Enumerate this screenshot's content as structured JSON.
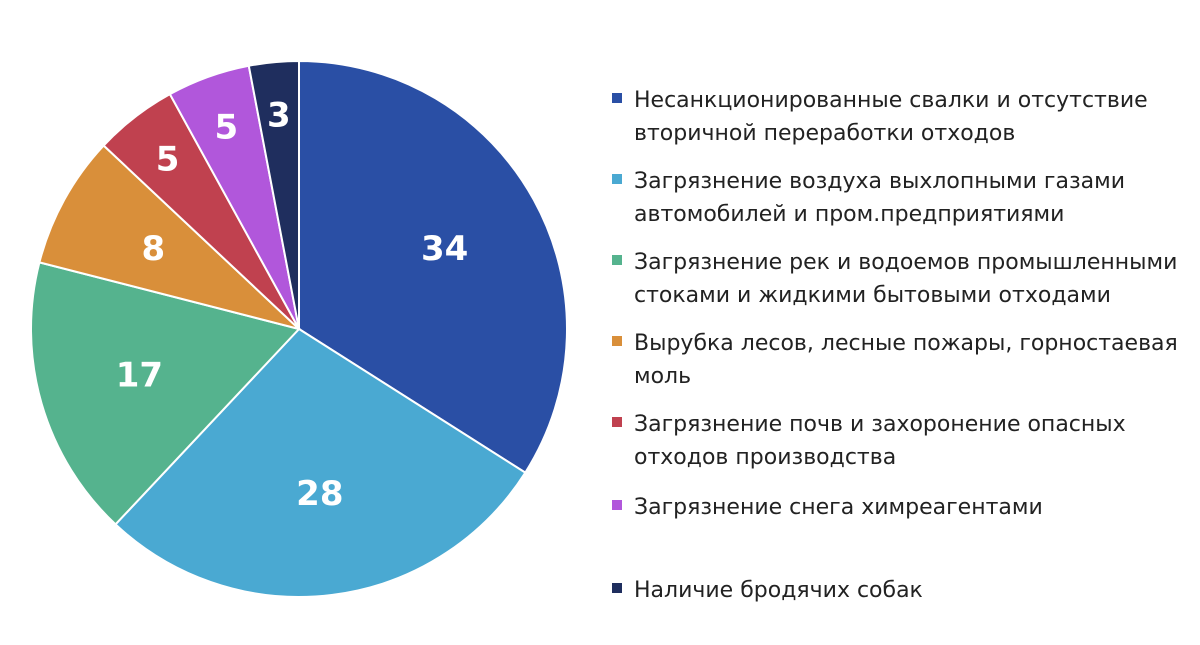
{
  "chart_data": {
    "type": "pie",
    "categories": [
      "Несанкционированные свалки и отсутствие вторичной переработки отходов",
      "Загрязнение воздуха выхлопными газами автомобилей и пром.предприятиями",
      "Загрязнение рек и водоемов промышленными стоками и жидкими бытовыми отходами",
      "Вырубка лесов, лесные пожары, горностаевая моль",
      "Загрязнение почв и захоронение опасных отходов производства",
      "Загрязнение снега химреагентами",
      "Наличие бродячих собак"
    ],
    "values": [
      34,
      28,
      17,
      8,
      5,
      5,
      3
    ],
    "data_labels": [
      "34",
      "28",
      "17",
      "8",
      "5",
      "5",
      "3"
    ],
    "colors": [
      "#2a4fa5",
      "#4aa9d2",
      "#55b38e",
      "#d98f3a",
      "#c0414f",
      "#b157db",
      "#1f2e5e"
    ],
    "start_angle_deg": 0,
    "direction": "clockwise",
    "legend_position": "right",
    "title": ""
  }
}
